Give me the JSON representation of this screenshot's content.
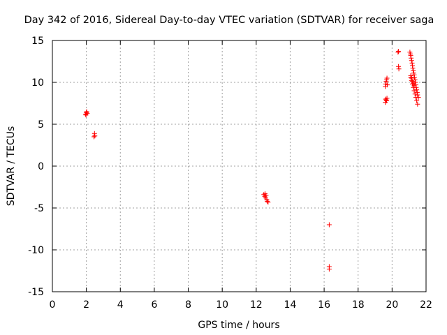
{
  "chart_data": {
    "type": "scatter",
    "title": "Day 342 of 2016, Sidereal Day-to-day VTEC variation (SDTVAR) for receiver saga",
    "xlabel": "GPS time / hours",
    "ylabel": "SDTVAR / TECUs",
    "xlim": [
      0,
      22
    ],
    "ylim": [
      -15,
      15
    ],
    "xticks": [
      0,
      2,
      4,
      6,
      8,
      10,
      12,
      14,
      16,
      18,
      20,
      22
    ],
    "yticks": [
      -15,
      -10,
      -5,
      0,
      5,
      10,
      15
    ],
    "grid": true,
    "marker": "+",
    "color": "#ff0000",
    "series": [
      {
        "name": "SDTVAR",
        "x": [
          1.95,
          2.0,
          2.05,
          1.98,
          2.02,
          2.45,
          2.48,
          2.5,
          12.45,
          12.5,
          12.55,
          12.58,
          12.62,
          12.65,
          12.7,
          12.52,
          16.3,
          16.3,
          16.3,
          19.6,
          19.62,
          19.65,
          19.68,
          19.7,
          19.72,
          19.6,
          19.65,
          19.7,
          19.62,
          19.68,
          20.35,
          20.38,
          20.4,
          20.38,
          21.05,
          21.08,
          21.1,
          21.12,
          21.15,
          21.18,
          21.2,
          21.22,
          21.25,
          21.28,
          21.3,
          21.32,
          21.35,
          21.38,
          21.4,
          21.42,
          21.45,
          21.48,
          21.5,
          21.55,
          21.1,
          21.15,
          21.2,
          21.25,
          21.3,
          21.35,
          21.4,
          21.45,
          21.5,
          21.1,
          21.15,
          21.2,
          21.25,
          21.3
        ],
        "y": [
          6.2,
          6.4,
          6.3,
          6.1,
          6.5,
          3.5,
          3.9,
          3.6,
          -3.4,
          -3.6,
          -3.8,
          -3.5,
          -4.0,
          -4.2,
          -4.3,
          -3.3,
          -7.0,
          -12.0,
          -12.3,
          9.5,
          9.8,
          10.1,
          10.3,
          10.5,
          9.7,
          7.6,
          7.9,
          8.1,
          8.0,
          7.8,
          13.6,
          13.7,
          11.6,
          11.9,
          13.6,
          13.4,
          13.2,
          12.9,
          12.6,
          12.3,
          12.0,
          11.7,
          11.4,
          11.1,
          10.9,
          10.6,
          10.3,
          10.0,
          9.7,
          9.4,
          9.1,
          8.8,
          8.5,
          8.2,
          10.6,
          10.2,
          9.8,
          9.4,
          9.0,
          8.6,
          8.2,
          7.8,
          7.4,
          10.8,
          10.5,
          10.1,
          9.9,
          9.6
        ]
      }
    ]
  }
}
